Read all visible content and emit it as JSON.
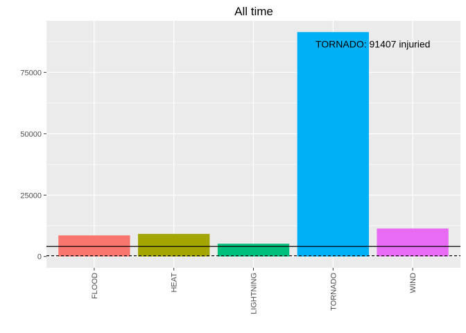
{
  "chart_data": {
    "type": "bar",
    "title": "All time",
    "xlabel": "",
    "ylabel": "",
    "categories": [
      "FLOOD",
      "HEAT",
      "LIGHTNING",
      "TORNADO",
      "WIND"
    ],
    "values": [
      8600,
      9200,
      5200,
      91407,
      11400
    ],
    "colors": [
      "#F8766D",
      "#A3A500",
      "#00BF7D",
      "#00B0F6",
      "#E76BF3"
    ],
    "ylim": [
      -4600,
      96000
    ],
    "yticks": [
      0,
      25000,
      50000,
      75000
    ],
    "ytick_labels": [
      "0",
      "25000",
      "50000",
      "75000"
    ],
    "hlines": [
      {
        "value": 4100,
        "style": "solid"
      },
      {
        "value": 300,
        "style": "dashed"
      }
    ],
    "annotation": {
      "text": "TORNADO: 91407 injuried",
      "x": 4.5,
      "y": 86500
    },
    "panel_background": "#EBEBEB",
    "grid": true,
    "legend": "none"
  }
}
